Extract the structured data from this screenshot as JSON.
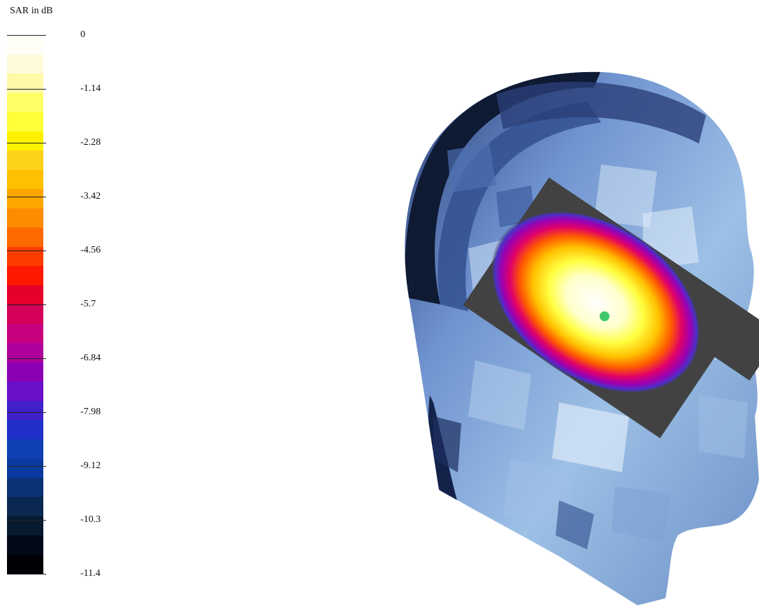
{
  "legend": {
    "title": "SAR in dB",
    "ticks": [
      "0",
      "-1.14",
      "-2.28",
      "-3.42",
      "-4.56",
      "-5.7",
      "-6.84",
      "-7.98",
      "-9.12",
      "-10.3",
      "-11.4"
    ],
    "colors": [
      "#fffff5",
      "#fffbd8",
      "#fff9a8",
      "#ffff66",
      "#ffff3a",
      "#fff200",
      "#ffd21a",
      "#ffc000",
      "#ffa500",
      "#ff8c00",
      "#ff6a00",
      "#ff3c00",
      "#ff1800",
      "#e4002a",
      "#d4005a",
      "#c8007e",
      "#b0009c",
      "#8c00b4",
      "#6a10c8",
      "#4020c8",
      "#2030c8",
      "#1040b4",
      "#0a3aa0",
      "#0a3275",
      "#0a2850",
      "#061a30",
      "#020818",
      "#000005"
    ]
  },
  "figure": {
    "subject": "head-model-with-sar-distribution",
    "colors": {
      "head_base": "#8eb4de",
      "head_dark": "#1a2a55",
      "head_mid": "#5b7fc0",
      "head_light": "#cfe1f5",
      "phone_grid": "#4a4a4a",
      "hotspot_center": "#ffffff",
      "feed_point": "#3ec86a"
    }
  }
}
